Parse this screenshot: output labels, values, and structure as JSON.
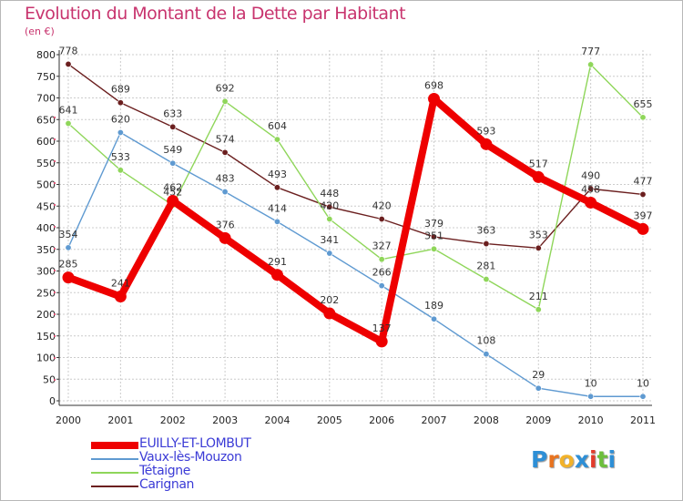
{
  "header": {
    "title": "Evolution du Montant de la Dette par Habitant",
    "unit": "(en €)"
  },
  "colors": {
    "title": "#c8346e",
    "legend_text": "#3b3bd6",
    "grid": "#cccccc"
  },
  "logo": {
    "letters": [
      "P",
      "r",
      "o",
      "x",
      "i",
      "t",
      "i"
    ],
    "colors": [
      "#2e8fd6",
      "#e8731f",
      "#f2b22a",
      "#2e8fd6",
      "#e23c2b",
      "#6cbf3c",
      "#2e8fd6"
    ]
  },
  "chart_data": {
    "type": "line",
    "title": "Evolution du Montant de la Dette par Habitant",
    "xlabel": "",
    "ylabel": "(en €)",
    "categories": [
      "2000",
      "2001",
      "2002",
      "2003",
      "2004",
      "2005",
      "2006",
      "2007",
      "2008",
      "2009",
      "2010",
      "2011"
    ],
    "ylim": [
      0,
      800
    ],
    "yticks": [
      "0",
      "50",
      "100",
      "150",
      "200",
      "250",
      "300",
      "350",
      "400",
      "450",
      "500",
      "550",
      "600",
      "650",
      "700",
      "750",
      "800"
    ],
    "grid": true,
    "legend_position": "bottom-left",
    "series": [
      {
        "name": "Carignan",
        "color": "#6b1f1f",
        "values": [
          778,
          689,
          633,
          574,
          493,
          448,
          420,
          379,
          363,
          353,
          490,
          477
        ]
      },
      {
        "name": "Tétaigne",
        "color": "#8fd65a",
        "values": [
          641,
          533,
          452,
          692,
          604,
          420,
          327,
          351,
          281,
          211,
          777,
          655
        ]
      },
      {
        "name": "Vaux-lès-Mouzon",
        "color": "#5f9ad1",
        "values": [
          354,
          620,
          549,
          483,
          414,
          341,
          266,
          189,
          108,
          29,
          10,
          10
        ]
      },
      {
        "name": "EUILLY-ET-LOMBUT",
        "color": "#ee0000",
        "values": [
          285,
          241,
          462,
          376,
          291,
          202,
          137,
          698,
          593,
          517,
          458,
          397
        ]
      }
    ],
    "legend": [
      "EUILLY-ET-LOMBUT",
      "Vaux-lès-Mouzon",
      "Tétaigne",
      "Carignan"
    ]
  }
}
